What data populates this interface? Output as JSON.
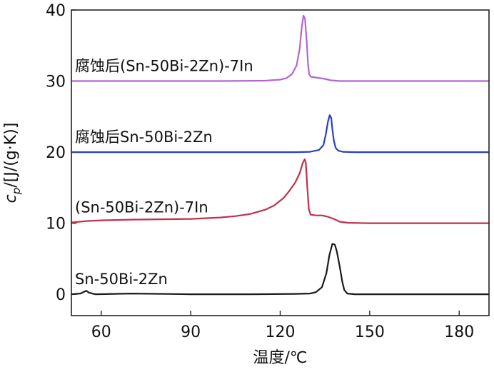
{
  "chart_data": {
    "type": "line",
    "xlabel": "温度/℃",
    "ylabel": {
      "symbol": "c",
      "subscript": "p",
      "unit": "/[J/(g·K)]"
    },
    "xlim": [
      50,
      190
    ],
    "ylim": [
      -3,
      40
    ],
    "xticks": [
      60,
      90,
      120,
      150,
      180
    ],
    "yticks": [
      0,
      10,
      20,
      30,
      40
    ],
    "grid": false,
    "series": [
      {
        "name": "Sn-50Bi-2Zn",
        "color": "#1a1a1a",
        "points": [
          [
            50,
            0
          ],
          [
            53,
            0.1
          ],
          [
            55,
            0.5
          ],
          [
            56,
            0.2
          ],
          [
            58,
            0
          ],
          [
            70,
            0.1
          ],
          [
            90,
            0
          ],
          [
            110,
            0
          ],
          [
            125,
            0.05
          ],
          [
            130,
            0.1
          ],
          [
            132,
            0.3
          ],
          [
            134,
            1.0
          ],
          [
            135.5,
            3.0
          ],
          [
            136.5,
            5.5
          ],
          [
            137.5,
            7.1
          ],
          [
            138.3,
            7.0
          ],
          [
            139,
            6.0
          ],
          [
            140,
            3.8
          ],
          [
            140.8,
            1.8
          ],
          [
            141.5,
            0.6
          ],
          [
            142.5,
            0.1
          ],
          [
            145,
            0
          ],
          [
            160,
            0
          ],
          [
            190,
            0
          ]
        ]
      },
      {
        "name": "(Sn-50Bi-2Zn)-7In",
        "color": "#c0304a",
        "points": [
          [
            50,
            10.1
          ],
          [
            55,
            10.3
          ],
          [
            60,
            10.4
          ],
          [
            70,
            10.5
          ],
          [
            80,
            10.55
          ],
          [
            90,
            10.6
          ],
          [
            100,
            10.8
          ],
          [
            105,
            11.0
          ],
          [
            110,
            11.3
          ],
          [
            115,
            11.9
          ],
          [
            118,
            12.5
          ],
          [
            121,
            13.5
          ],
          [
            123,
            14.5
          ],
          [
            125,
            15.7
          ],
          [
            126.5,
            17.0
          ],
          [
            127.5,
            18.4
          ],
          [
            128.2,
            19.0
          ],
          [
            128.6,
            18.5
          ],
          [
            129.1,
            15.0
          ],
          [
            129.6,
            12.0
          ],
          [
            130.2,
            11.2
          ],
          [
            132,
            11.1
          ],
          [
            134,
            11.1
          ],
          [
            136,
            10.9
          ],
          [
            138,
            10.6
          ],
          [
            140,
            10.2
          ],
          [
            143,
            10.05
          ],
          [
            150,
            10
          ],
          [
            165,
            10
          ],
          [
            190,
            10
          ]
        ]
      },
      {
        "name": "腐蚀后Sn-50Bi-2Zn",
        "color": "#2a3fc4",
        "points": [
          [
            50,
            20
          ],
          [
            100,
            20
          ],
          [
            125,
            20
          ],
          [
            130,
            20.05
          ],
          [
            133,
            20.3
          ],
          [
            134.5,
            21
          ],
          [
            135.3,
            22.5
          ],
          [
            136,
            24.3
          ],
          [
            136.6,
            25.2
          ],
          [
            137.1,
            24.8
          ],
          [
            137.5,
            23.2
          ],
          [
            138,
            21.6
          ],
          [
            138.6,
            20.6
          ],
          [
            139.5,
            20.2
          ],
          [
            141,
            20.05
          ],
          [
            145,
            20
          ],
          [
            190,
            20
          ]
        ]
      },
      {
        "name": "腐蚀后(Sn-50Bi-2Zn)-7In",
        "color": "#b065d6",
        "points": [
          [
            50,
            30
          ],
          [
            100,
            30
          ],
          [
            115,
            30.05
          ],
          [
            120,
            30.2
          ],
          [
            122,
            30.4
          ],
          [
            124,
            31.0
          ],
          [
            125.5,
            32.2
          ],
          [
            126.5,
            34.5
          ],
          [
            127.2,
            37.5
          ],
          [
            127.8,
            39.2
          ],
          [
            128.3,
            38.8
          ],
          [
            128.9,
            35.5
          ],
          [
            129.3,
            32.5
          ],
          [
            129.7,
            31.0
          ],
          [
            130.3,
            30.6
          ],
          [
            132,
            30.5
          ],
          [
            135,
            30.3
          ],
          [
            137,
            30.1
          ],
          [
            140,
            30
          ],
          [
            190,
            30
          ]
        ]
      }
    ]
  }
}
